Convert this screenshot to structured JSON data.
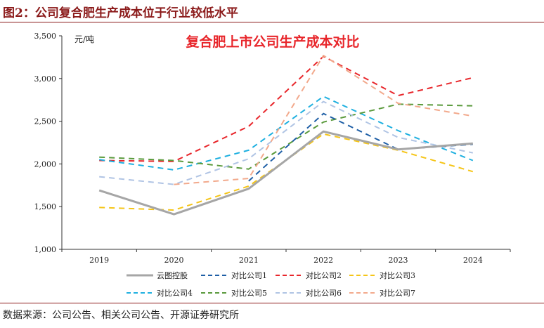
{
  "figure": {
    "title": "图2：公司复合肥生产成本位于行业较低水平",
    "source": "数据来源：公司公告、相关公司公告、开源证券研究所"
  },
  "chart_data": {
    "type": "line",
    "title": "复合肥上市公司生产成本对比",
    "ylabel": "元/吨",
    "xlabel": "",
    "categories": [
      "2019",
      "2020",
      "2021",
      "2022",
      "2023",
      "2024"
    ],
    "ylim": [
      1000,
      3500
    ],
    "yticks": [
      "1,000",
      "1,500",
      "2,000",
      "2,500",
      "3,000",
      "3,500"
    ],
    "ytick_values": [
      1000,
      1500,
      2000,
      2500,
      3000,
      3500
    ],
    "grid": false,
    "legend_position": "bottom",
    "series": [
      {
        "name": "云图控股",
        "values": [
          1690,
          1410,
          1710,
          2380,
          2170,
          2240
        ],
        "color": "#a6a6a6",
        "style": "solid"
      },
      {
        "name": "对比公司1",
        "values": [
          null,
          null,
          1800,
          2590,
          2170,
          2230
        ],
        "color": "#1f5fa6",
        "style": "dashed"
      },
      {
        "name": "对比公司2",
        "values": [
          2040,
          2030,
          2440,
          3260,
          2800,
          3010
        ],
        "color": "#e8262b",
        "style": "dashed"
      },
      {
        "name": "对比公司3",
        "values": [
          1490,
          1460,
          1740,
          2350,
          2160,
          1910
        ],
        "color": "#f5c518",
        "style": "dashed"
      },
      {
        "name": "对比公司4",
        "values": [
          2050,
          1930,
          2160,
          2790,
          2390,
          2040
        ],
        "color": "#1fb0e0",
        "style": "dashed"
      },
      {
        "name": "对比公司5",
        "values": [
          2080,
          2040,
          1940,
          2490,
          2700,
          2680
        ],
        "color": "#5a9a3c",
        "style": "dashed"
      },
      {
        "name": "对比公司6",
        "values": [
          1850,
          1760,
          2060,
          2730,
          2310,
          2130
        ],
        "color": "#b0c4e4",
        "style": "dashed"
      },
      {
        "name": "对比公司7",
        "values": [
          null,
          1760,
          1830,
          3270,
          2710,
          2560
        ],
        "color": "#f2a98c",
        "style": "dashed"
      }
    ]
  }
}
